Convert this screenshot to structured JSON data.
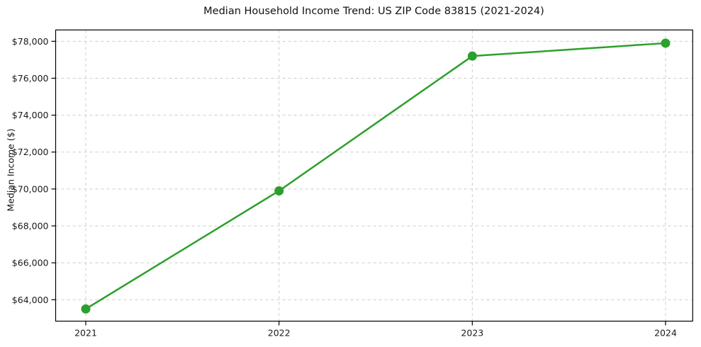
{
  "page": {
    "background": "#ffffff"
  },
  "chart_data": {
    "type": "line",
    "title": "Median Household Income Trend: US ZIP Code 83815 (2021-2024)",
    "xlabel": "",
    "ylabel": "Median Income ($)",
    "categories": [
      "2021",
      "2022",
      "2023",
      "2024"
    ],
    "series": [
      {
        "name": "Median Household Income",
        "values": [
          63500,
          69900,
          77200,
          77900
        ],
        "color": "#2ca02c",
        "marker": "circle",
        "line_width": 2.5,
        "marker_radius": 6.5
      }
    ],
    "yticks": [
      {
        "value": 64000,
        "label": "$64,000"
      },
      {
        "value": 66000,
        "label": "$66,000"
      },
      {
        "value": 68000,
        "label": "$68,000"
      },
      {
        "value": 70000,
        "label": "$70,000"
      },
      {
        "value": 72000,
        "label": "$72,000"
      },
      {
        "value": 74000,
        "label": "$74,000"
      },
      {
        "value": 76000,
        "label": "$76,000"
      },
      {
        "value": 78000,
        "label": "$78,000"
      }
    ],
    "ylim": [
      62840,
      78615
    ],
    "grid": {
      "visible": true,
      "style": "dashed",
      "color": "#cccccc"
    },
    "legend": "none",
    "frame": "box",
    "axis_color": "#000000",
    "tick_label_color": "#1a1a1a"
  }
}
